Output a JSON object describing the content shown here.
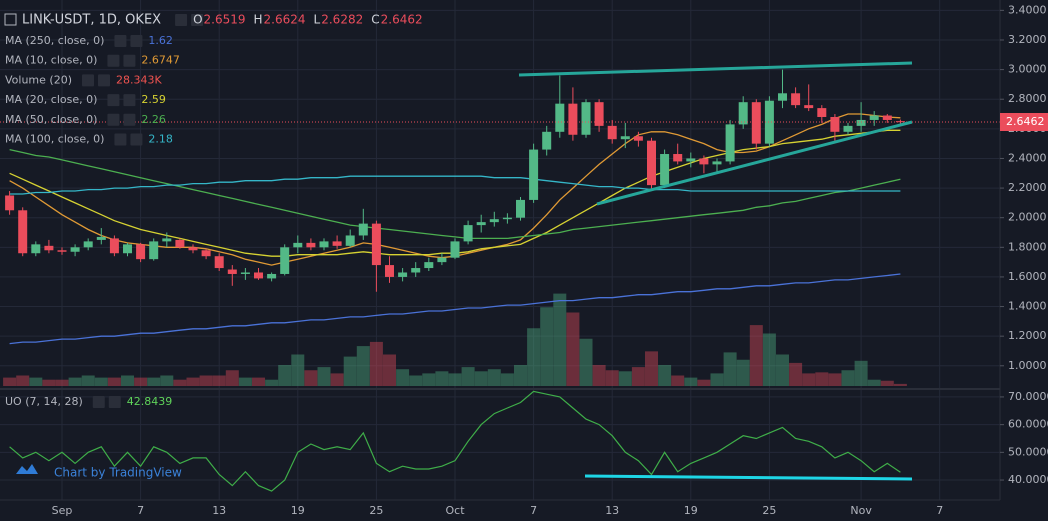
{
  "chart_data": [
    {
      "type": "candlestick",
      "title": "LINK-USDT, 1D, OKEX",
      "ohlc_letters": [
        "O",
        "H",
        "L",
        "C"
      ],
      "categories": [
        null,
        null,
        null,
        null,
        "Sep",
        null,
        null,
        null,
        null,
        null,
        "7",
        null,
        null,
        null,
        null,
        null,
        "13",
        null,
        null,
        null,
        null,
        null,
        "19",
        null,
        null,
        null,
        null,
        null,
        "25",
        null,
        null,
        null,
        null,
        null,
        "Oct",
        null,
        null,
        null,
        null,
        null,
        "7",
        null,
        null,
        null,
        null,
        null,
        "13",
        null,
        null,
        null,
        null,
        null,
        "19",
        null,
        null,
        null,
        null,
        null,
        "25",
        null,
        null,
        null,
        null,
        null,
        null,
        "Nov",
        null,
        null,
        null,
        null,
        null,
        "7"
      ],
      "open": [
        2.15,
        2.05,
        1.76,
        1.81,
        1.78,
        1.77,
        1.8,
        1.85,
        1.86,
        1.76,
        1.82,
        1.72,
        1.84,
        1.85,
        1.8,
        1.78,
        1.74,
        1.65,
        1.62,
        1.63,
        1.59,
        1.62,
        1.8,
        1.83,
        1.8,
        1.84,
        1.81,
        1.88,
        1.96,
        1.68,
        1.6,
        1.63,
        1.66,
        1.7,
        1.73,
        1.84,
        1.95,
        1.97,
        1.99,
        2.0,
        2.12,
        2.46,
        2.58,
        2.77,
        2.56,
        2.78,
        2.62,
        2.53,
        2.55,
        2.52,
        2.22,
        2.43,
        2.38,
        2.4,
        2.36,
        2.38,
        2.63,
        2.78,
        2.5,
        2.79,
        2.84,
        2.76,
        2.74,
        2.68,
        2.58,
        2.62,
        2.66,
        2.69,
        2.6519,
        null,
        null,
        null
      ],
      "high": [
        2.18,
        2.07,
        1.84,
        1.85,
        1.8,
        1.82,
        1.86,
        1.93,
        1.88,
        1.83,
        1.83,
        1.86,
        1.9,
        1.86,
        1.82,
        1.79,
        1.76,
        1.68,
        1.66,
        1.66,
        1.63,
        1.82,
        1.88,
        1.86,
        1.86,
        1.88,
        1.92,
        2.06,
        1.98,
        1.74,
        1.66,
        1.7,
        1.73,
        1.76,
        1.86,
        1.98,
        2.02,
        2.04,
        2.03,
        2.14,
        2.5,
        2.62,
        2.96,
        2.88,
        2.8,
        2.8,
        2.66,
        2.64,
        2.58,
        2.54,
        2.46,
        2.5,
        2.44,
        2.42,
        2.4,
        2.66,
        2.82,
        2.8,
        2.82,
        3.0,
        2.88,
        2.9,
        2.76,
        2.7,
        2.64,
        2.78,
        2.72,
        2.7,
        2.6624,
        null,
        null,
        null
      ],
      "low": [
        2.02,
        1.74,
        1.74,
        1.76,
        1.75,
        1.74,
        1.78,
        1.82,
        1.74,
        1.74,
        1.7,
        1.71,
        1.8,
        1.79,
        1.76,
        1.72,
        1.64,
        1.54,
        1.58,
        1.58,
        1.57,
        1.61,
        1.76,
        1.78,
        1.78,
        1.79,
        1.8,
        1.85,
        1.5,
        1.56,
        1.57,
        1.6,
        1.64,
        1.68,
        1.72,
        1.82,
        1.9,
        1.94,
        1.96,
        1.98,
        2.1,
        2.42,
        2.54,
        2.52,
        2.54,
        2.58,
        2.5,
        2.47,
        2.48,
        2.18,
        2.2,
        2.36,
        2.34,
        2.3,
        2.3,
        2.36,
        2.6,
        2.46,
        2.48,
        2.74,
        2.74,
        2.72,
        2.64,
        2.52,
        2.56,
        2.58,
        2.62,
        2.64,
        2.6282,
        null,
        null,
        null
      ],
      "close": [
        2.05,
        1.76,
        1.82,
        1.78,
        1.77,
        1.8,
        1.84,
        1.87,
        1.76,
        1.82,
        1.72,
        1.84,
        1.86,
        1.8,
        1.78,
        1.74,
        1.66,
        1.62,
        1.63,
        1.59,
        1.62,
        1.8,
        1.83,
        1.8,
        1.84,
        1.81,
        1.88,
        1.96,
        1.68,
        1.6,
        1.63,
        1.66,
        1.7,
        1.73,
        1.84,
        1.95,
        1.97,
        1.99,
        2.0,
        2.12,
        2.46,
        2.58,
        2.77,
        2.56,
        2.78,
        2.62,
        2.53,
        2.55,
        2.52,
        2.22,
        2.43,
        2.38,
        2.4,
        2.36,
        2.38,
        2.63,
        2.78,
        2.5,
        2.79,
        2.84,
        2.76,
        2.74,
        2.68,
        2.58,
        2.62,
        2.66,
        2.69,
        2.66,
        2.6462,
        null,
        null,
        null
      ],
      "up_color": "#53b987",
      "down_color": "#eb4d5c",
      "volume_name": "Volume (20)",
      "volume_ma_label": "28.343K",
      "volume_label_color": "#ef5350",
      "volume": [
        8,
        10,
        8,
        6,
        6,
        8,
        10,
        8,
        8,
        10,
        8,
        8,
        10,
        6,
        8,
        10,
        10,
        15,
        8,
        8,
        6,
        20,
        30,
        15,
        18,
        12,
        28,
        38,
        42,
        30,
        16,
        10,
        12,
        14,
        12,
        18,
        14,
        16,
        12,
        20,
        55,
        75,
        88,
        70,
        45,
        20,
        15,
        14,
        18,
        33,
        20,
        10,
        8,
        6,
        12,
        32,
        25,
        58,
        50,
        30,
        22,
        12,
        13,
        12,
        15,
        24,
        6,
        5,
        2,
        null,
        null,
        null
      ],
      "series": [
        {
          "name": "MA (250, close, 0)",
          "color": "#4a72d8",
          "values": [
            1.15,
            1.16,
            1.16,
            1.17,
            1.18,
            1.18,
            1.19,
            1.2,
            1.2,
            1.21,
            1.22,
            1.22,
            1.23,
            1.24,
            1.25,
            1.25,
            1.26,
            1.27,
            1.27,
            1.28,
            1.29,
            1.29,
            1.3,
            1.31,
            1.31,
            1.32,
            1.33,
            1.33,
            1.34,
            1.35,
            1.35,
            1.36,
            1.37,
            1.37,
            1.38,
            1.39,
            1.39,
            1.4,
            1.41,
            1.41,
            1.42,
            1.43,
            1.44,
            1.44,
            1.45,
            1.46,
            1.46,
            1.47,
            1.48,
            1.48,
            1.49,
            1.5,
            1.5,
            1.51,
            1.52,
            1.52,
            1.53,
            1.54,
            1.54,
            1.55,
            1.56,
            1.56,
            1.57,
            1.58,
            1.58,
            1.59,
            1.6,
            1.61,
            1.62,
            null,
            null,
            null
          ]
        },
        {
          "name": "MA (10, close, 0)",
          "color": "#e09a35",
          "values": [
            2.25,
            2.2,
            2.14,
            2.08,
            2.02,
            1.97,
            1.92,
            1.88,
            1.85,
            1.83,
            1.82,
            1.81,
            1.8,
            1.8,
            1.8,
            1.79,
            1.77,
            1.75,
            1.72,
            1.7,
            1.68,
            1.7,
            1.72,
            1.74,
            1.76,
            1.78,
            1.8,
            1.83,
            1.82,
            1.8,
            1.78,
            1.76,
            1.74,
            1.73,
            1.74,
            1.76,
            1.78,
            1.8,
            1.82,
            1.85,
            1.93,
            2.02,
            2.12,
            2.2,
            2.28,
            2.36,
            2.43,
            2.5,
            2.56,
            2.58,
            2.58,
            2.56,
            2.53,
            2.5,
            2.46,
            2.44,
            2.44,
            2.45,
            2.48,
            2.52,
            2.56,
            2.6,
            2.63,
            2.67,
            2.7,
            2.7,
            2.69,
            2.68,
            2.6747,
            null,
            null,
            null
          ]
        },
        {
          "name": "MA (20, close, 0)",
          "color": "#d6d232",
          "values": [
            2.3,
            2.26,
            2.22,
            2.18,
            2.14,
            2.1,
            2.06,
            2.02,
            1.98,
            1.95,
            1.92,
            1.9,
            1.88,
            1.86,
            1.84,
            1.82,
            1.8,
            1.78,
            1.76,
            1.75,
            1.74,
            1.74,
            1.75,
            1.75,
            1.75,
            1.75,
            1.76,
            1.77,
            1.76,
            1.75,
            1.75,
            1.75,
            1.75,
            1.76,
            1.76,
            1.77,
            1.79,
            1.8,
            1.81,
            1.82,
            1.86,
            1.9,
            1.95,
            2.0,
            2.05,
            2.1,
            2.15,
            2.2,
            2.24,
            2.28,
            2.31,
            2.34,
            2.37,
            2.4,
            2.42,
            2.44,
            2.46,
            2.47,
            2.48,
            2.5,
            2.51,
            2.52,
            2.53,
            2.55,
            2.56,
            2.57,
            2.58,
            2.59,
            2.59,
            null,
            null,
            null
          ]
        },
        {
          "name": "MA (50, close, 0)",
          "color": "#4caf50",
          "values": [
            2.46,
            2.44,
            2.42,
            2.41,
            2.39,
            2.37,
            2.35,
            2.33,
            2.31,
            2.29,
            2.27,
            2.25,
            2.23,
            2.21,
            2.19,
            2.17,
            2.15,
            2.13,
            2.11,
            2.09,
            2.07,
            2.05,
            2.03,
            2.01,
            1.99,
            1.97,
            1.95,
            1.94,
            1.93,
            1.92,
            1.91,
            1.9,
            1.89,
            1.88,
            1.87,
            1.86,
            1.86,
            1.86,
            1.86,
            1.87,
            1.88,
            1.89,
            1.9,
            1.92,
            1.93,
            1.94,
            1.95,
            1.96,
            1.97,
            1.98,
            1.99,
            2.0,
            2.01,
            2.02,
            2.03,
            2.04,
            2.05,
            2.07,
            2.08,
            2.1,
            2.11,
            2.13,
            2.15,
            2.17,
            2.18,
            2.2,
            2.22,
            2.24,
            2.26,
            null,
            null,
            null
          ]
        },
        {
          "name": "MA (100, close, 0)",
          "color": "#35b6c8",
          "values": [
            2.16,
            2.16,
            2.17,
            2.17,
            2.18,
            2.18,
            2.19,
            2.19,
            2.2,
            2.2,
            2.21,
            2.21,
            2.22,
            2.22,
            2.23,
            2.23,
            2.24,
            2.24,
            2.25,
            2.25,
            2.25,
            2.26,
            2.26,
            2.27,
            2.27,
            2.27,
            2.28,
            2.28,
            2.28,
            2.28,
            2.28,
            2.28,
            2.28,
            2.28,
            2.28,
            2.28,
            2.28,
            2.27,
            2.27,
            2.27,
            2.26,
            2.25,
            2.24,
            2.23,
            2.22,
            2.21,
            2.21,
            2.2,
            2.2,
            2.19,
            2.19,
            2.19,
            2.18,
            2.18,
            2.18,
            2.18,
            2.18,
            2.18,
            2.18,
            2.18,
            2.18,
            2.18,
            2.18,
            2.18,
            2.18,
            2.18,
            2.18,
            2.18,
            2.18,
            null,
            null,
            null
          ]
        }
      ],
      "ylim": [
        0.85,
        3.47
      ],
      "yticks": [
        {
          "value": 1.0,
          "label": "1.0000"
        },
        {
          "value": 1.2,
          "label": "1.2000"
        },
        {
          "value": 1.4,
          "label": "1.4000"
        },
        {
          "value": 1.6,
          "label": "1.6000"
        },
        {
          "value": 1.8,
          "label": "1.8000"
        },
        {
          "value": 2.0,
          "label": "2.0000"
        },
        {
          "value": 2.2,
          "label": "2.2000"
        },
        {
          "value": 2.4,
          "label": "2.4000"
        },
        {
          "value": 2.6,
          "label": "2.6000"
        },
        {
          "value": 2.8,
          "label": "2.8000"
        },
        {
          "value": 3.0,
          "label": "3.0000"
        },
        {
          "value": 3.2,
          "label": "3.2000"
        },
        {
          "value": 3.4,
          "label": "3.4000"
        }
      ],
      "grid": true,
      "watermark": "Chart by TradingView"
    },
    {
      "type": "line",
      "series": [
        {
          "name": "UO (7, 14, 28)",
          "color": "#3fae49",
          "label_color": "#5fd35a",
          "values": [
            52,
            48,
            50,
            47,
            50,
            46,
            50,
            52,
            45,
            50,
            45,
            52,
            50,
            46,
            48,
            48,
            42,
            38,
            43,
            38,
            36,
            40,
            50,
            53,
            51,
            52,
            51,
            57,
            46,
            43,
            45,
            44,
            44,
            45,
            47,
            54,
            60,
            64,
            66,
            68,
            72,
            71,
            70,
            66,
            62,
            60,
            56,
            50,
            47,
            42,
            50,
            43,
            46,
            48,
            50,
            53,
            56,
            55,
            57,
            59,
            55,
            54,
            52,
            48,
            50,
            47,
            43,
            46,
            42.8439,
            null,
            null,
            null
          ]
        }
      ],
      "ylim": [
        32.8,
        72.5
      ],
      "yticks": [
        {
          "value": 40,
          "label": "40.0000"
        },
        {
          "value": 50,
          "label": "50.0000"
        },
        {
          "value": 60,
          "label": "60.0000"
        },
        {
          "value": 70,
          "label": "70.0000"
        }
      ],
      "grid": true
    }
  ]
}
